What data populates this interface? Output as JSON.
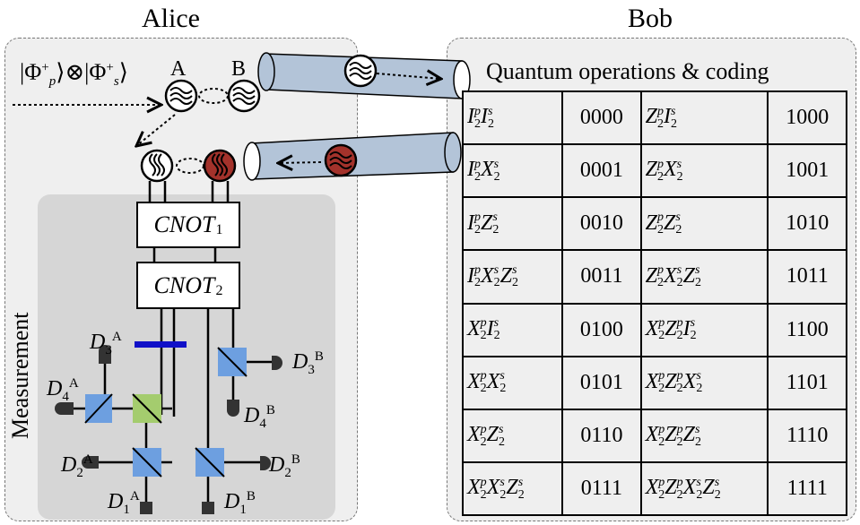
{
  "labels": {
    "alice": "Alice",
    "bob": "Bob",
    "measurement": "Measurement",
    "photon_a": "A",
    "photon_b": "B",
    "table_title": "Quantum operations & coding"
  },
  "input_state": {
    "phi": "Φ",
    "plus": "+",
    "p": "p",
    "s": "s",
    "otimes": "⊗"
  },
  "gates": [
    {
      "name": "CNOT",
      "index": "1"
    },
    {
      "name": "CNOT",
      "index": "2"
    }
  ],
  "detectors": [
    {
      "id": "D3A",
      "symbol": "D",
      "sub": "3",
      "sup": "A"
    },
    {
      "id": "D4A",
      "symbol": "D",
      "sub": "4",
      "sup": "A"
    },
    {
      "id": "D2A",
      "symbol": "D",
      "sub": "2",
      "sup": "A"
    },
    {
      "id": "D1A",
      "symbol": "D",
      "sub": "1",
      "sup": "A"
    },
    {
      "id": "D3B",
      "symbol": "D",
      "sub": "3",
      "sup": "B"
    },
    {
      "id": "D4B",
      "symbol": "D",
      "sub": "4",
      "sup": "B"
    },
    {
      "id": "D2B",
      "symbol": "D",
      "sub": "2",
      "sup": "B"
    },
    {
      "id": "D1B",
      "symbol": "D",
      "sub": "1",
      "sup": "B"
    }
  ],
  "coding_table": [
    {
      "op1": [
        [
          "I",
          "p"
        ],
        [
          "I",
          "s"
        ]
      ],
      "code1": "0000",
      "op2": [
        [
          "Z",
          "p"
        ],
        [
          "I",
          "s"
        ]
      ],
      "code2": "1000"
    },
    {
      "op1": [
        [
          "I",
          "p"
        ],
        [
          "X",
          "s"
        ]
      ],
      "code1": "0001",
      "op2": [
        [
          "Z",
          "p"
        ],
        [
          "X",
          "s"
        ]
      ],
      "code2": "1001"
    },
    {
      "op1": [
        [
          "I",
          "p"
        ],
        [
          "Z",
          "s"
        ]
      ],
      "code1": "0010",
      "op2": [
        [
          "Z",
          "p"
        ],
        [
          "Z",
          "s"
        ]
      ],
      "code2": "1010"
    },
    {
      "op1": [
        [
          "I",
          "p"
        ],
        [
          "X",
          "s"
        ],
        [
          "Z",
          "s"
        ]
      ],
      "code1": "0011",
      "op2": [
        [
          "Z",
          "p"
        ],
        [
          "X",
          "s"
        ],
        [
          "Z",
          "s"
        ]
      ],
      "code2": "1011"
    },
    {
      "op1": [
        [
          "X",
          "p"
        ],
        [
          "I",
          "s"
        ]
      ],
      "code1": "0100",
      "op2": [
        [
          "X",
          "p"
        ],
        [
          "Z",
          "p"
        ],
        [
          "I",
          "s"
        ]
      ],
      "code2": "1100"
    },
    {
      "op1": [
        [
          "X",
          "p"
        ],
        [
          "X",
          "s"
        ]
      ],
      "code1": "0101",
      "op2": [
        [
          "X",
          "p"
        ],
        [
          "Z",
          "p"
        ],
        [
          "X",
          "s"
        ]
      ],
      "code2": "1101"
    },
    {
      "op1": [
        [
          "X",
          "p"
        ],
        [
          "Z",
          "s"
        ]
      ],
      "code1": "0110",
      "op2": [
        [
          "X",
          "p"
        ],
        [
          "Z",
          "p"
        ],
        [
          "Z",
          "s"
        ]
      ],
      "code2": "1110"
    },
    {
      "op1": [
        [
          "X",
          "p"
        ],
        [
          "X",
          "s"
        ],
        [
          "Z",
          "s"
        ]
      ],
      "code1": "0111",
      "op2": [
        [
          "X",
          "p"
        ],
        [
          "Z",
          "p"
        ],
        [
          "X",
          "s"
        ],
        [
          "Z",
          "s"
        ]
      ],
      "code2": "1111"
    }
  ],
  "operator_subscript": "2",
  "colors": {
    "fiber": "#b3c4d8",
    "photon_red": "#a3322b",
    "splitter_blue": "#6d9fe0",
    "splitter_green": "#a4cc6e",
    "filter_bar": "#1010c8",
    "panel_bg": "#efefef",
    "measurement_bg": "#d6d6d6"
  }
}
